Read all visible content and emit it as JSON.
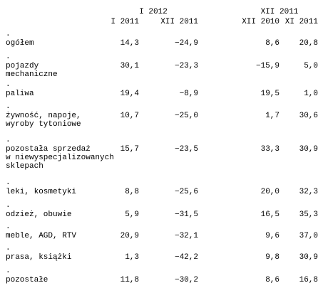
{
  "header": {
    "group1_title": "I 2012",
    "group2_title": "XII 2011",
    "columns": [
      "I 2011",
      "XII 2011",
      "XII 2010",
      "XI 2011"
    ]
  },
  "row_marker": ".",
  "rows": [
    {
      "label_lines": [
        "ogółem"
      ],
      "values": [
        "14,3",
        "−24,9",
        "8,6",
        "20,8"
      ]
    },
    {
      "label_lines": [
        "pojazdy",
        "mechaniczne"
      ],
      "values": [
        "30,1",
        "−23,3",
        "−15,9",
        "5,0"
      ]
    },
    {
      "label_lines": [
        "paliwa"
      ],
      "values": [
        "19,4",
        "−8,9",
        "19,5",
        "1,0"
      ]
    },
    {
      "label_lines": [
        "żywność, napoje,",
        "wyroby tytoniowe"
      ],
      "values": [
        "10,7",
        "−25,0",
        "1,7",
        "30,6"
      ]
    },
    {
      "label_lines": [
        "pozostała sprzedaż",
        "w niewyspecjalizowanych",
        "sklepach"
      ],
      "values": [
        "15,7",
        "−23,5",
        "33,3",
        "30,9"
      ]
    },
    {
      "label_lines": [
        "leki, kosmetyki"
      ],
      "values": [
        "8,8",
        "−25,6",
        "20,0",
        "32,3"
      ]
    },
    {
      "label_lines": [
        "odzież, obuwie"
      ],
      "values": [
        "5,9",
        "−31,5",
        "16,5",
        "35,3"
      ]
    },
    {
      "label_lines": [
        "meble, AGD, RTV"
      ],
      "values": [
        "20,9",
        "−32,1",
        "9,6",
        "37,0"
      ]
    },
    {
      "label_lines": [
        "prasa, książki"
      ],
      "values": [
        "1,3",
        "−42,2",
        "9,8",
        "30,9"
      ]
    },
    {
      "label_lines": [
        "pozostałe"
      ],
      "values": [
        "11,8",
        "−30,2",
        "8,6",
        "16,8"
      ]
    }
  ]
}
